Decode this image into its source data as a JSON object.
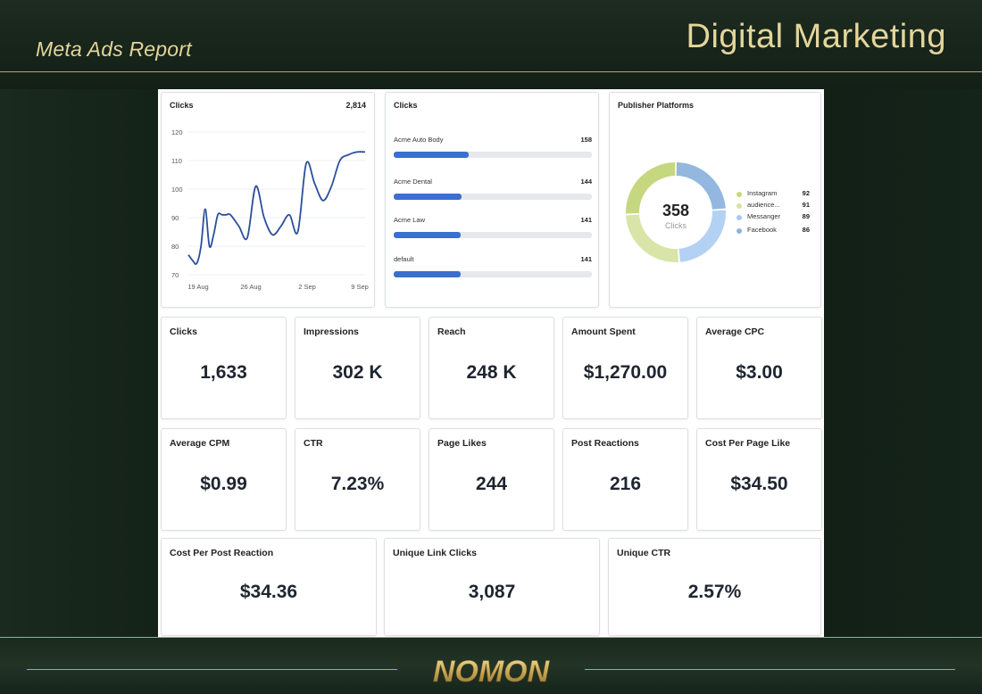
{
  "header": {
    "report_title": "Meta Ads Report",
    "section_title": "Digital Marketing"
  },
  "footer": {
    "logo": "NOMON"
  },
  "colors": {
    "gold": "#e3d59b",
    "accent_blue": "#3b6fd0",
    "line_blue": "#2a4f9a"
  },
  "chart_data": [
    {
      "type": "line",
      "title": "Clicks",
      "total": "2,814",
      "x_ticks": [
        "19 Aug",
        "26 Aug",
        "2 Sep",
        "9 Sep"
      ],
      "y_ticks": [
        "120",
        "110",
        "100",
        "90",
        "80",
        "70"
      ],
      "ylim": [
        70,
        120
      ],
      "grid": true,
      "x": [
        0,
        0.5,
        1,
        1.5,
        2,
        2.5,
        3,
        3.5,
        4,
        4.5,
        5,
        6,
        7,
        8,
        9,
        10,
        11,
        12,
        13,
        14,
        15,
        16,
        17,
        18,
        19,
        20,
        21
      ],
      "values": [
        77,
        75,
        74,
        80,
        93,
        80,
        84,
        91,
        91,
        91,
        91,
        87,
        83,
        101,
        90,
        84,
        87,
        91,
        85,
        109,
        102,
        96,
        101,
        110,
        112,
        113,
        113
      ]
    },
    {
      "type": "bar",
      "title": "Clicks",
      "categories": [
        "Acme Auto Body",
        "Acme Dental",
        "Acme Law",
        "default"
      ],
      "values": [
        158,
        144,
        141,
        141
      ],
      "value_labels": [
        "158",
        "144",
        "141",
        "141"
      ],
      "max": 420
    },
    {
      "type": "pie",
      "title": "Publisher Platforms",
      "center_value": "358",
      "center_label": "Clicks",
      "labels": [
        "Instagram",
        "audience...",
        "Messanger",
        "Facebook"
      ],
      "values": [
        92,
        91,
        89,
        86
      ],
      "value_labels": [
        "92",
        "91",
        "89",
        "86"
      ],
      "colors": [
        "#c7d87a",
        "#d6e39e",
        "#a9c9ee",
        "#8db3de"
      ],
      "donut_colors": [
        "#c5d77f",
        "#d8e4a8",
        "#b3d1f2",
        "#93b7df"
      ],
      "legend": "right"
    }
  ],
  "metrics": [
    {
      "label": "Clicks",
      "value": "1,633"
    },
    {
      "label": "Impressions",
      "value": "302 K"
    },
    {
      "label": "Reach",
      "value": "248 K"
    },
    {
      "label": "Amount Spent",
      "value": "$1,270.00"
    },
    {
      "label": "Average CPC",
      "value": "$3.00"
    },
    {
      "label": "Average CPM",
      "value": "$0.99"
    },
    {
      "label": "CTR",
      "value": "7.23%"
    },
    {
      "label": "Page Likes",
      "value": "244"
    },
    {
      "label": "Post Reactions",
      "value": "216"
    },
    {
      "label": "Cost Per Page Like",
      "value": "$34.50"
    },
    {
      "label": "Cost Per Post Reaction",
      "value": "$34.36"
    },
    {
      "label": "Unique Link Clicks",
      "value": "3,087"
    },
    {
      "label": "Unique CTR",
      "value": "2.57%"
    }
  ]
}
